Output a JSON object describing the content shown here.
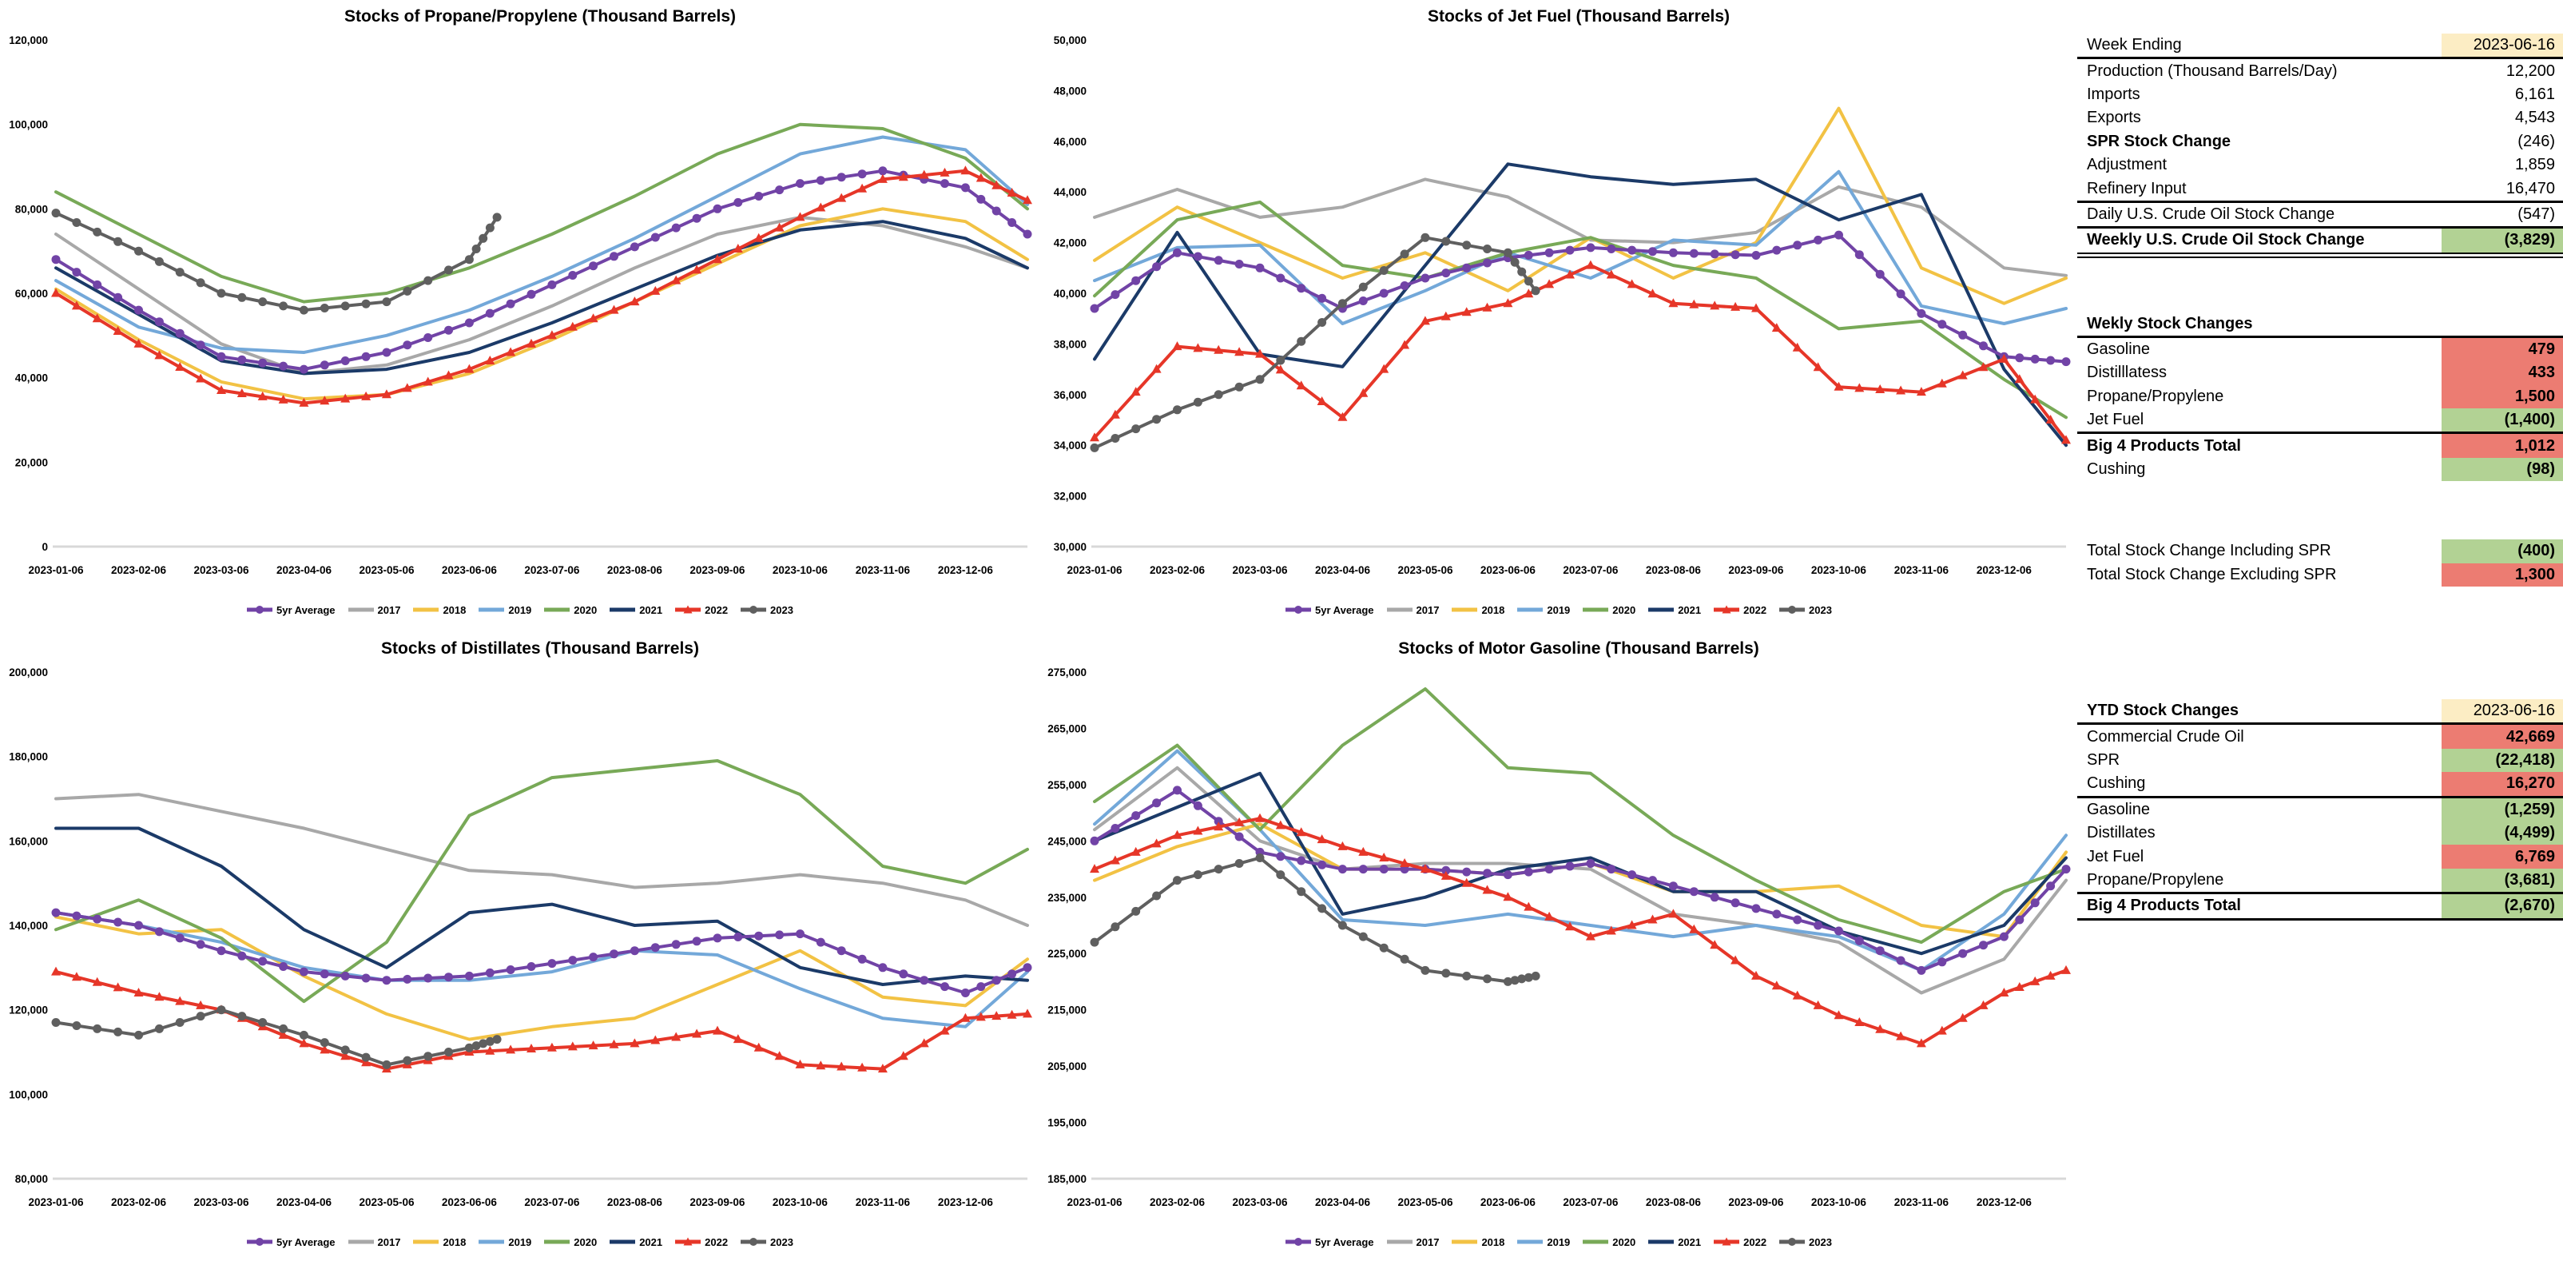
{
  "chart_meta": {
    "x_labels": [
      "2023-01-06",
      "2023-02-06",
      "2023-03-06",
      "2023-04-06",
      "2023-05-06",
      "2023-06-06",
      "2023-07-06",
      "2023-08-06",
      "2023-09-06",
      "2023-10-06",
      "2023-11-06",
      "2023-12-06"
    ],
    "xf_full": [
      0,
      0.0851,
      0.1702,
      0.2553,
      0.3404,
      0.4255,
      0.5106,
      0.5957,
      0.6809,
      0.766,
      0.8511,
      0.9362,
      1.0
    ],
    "xf_partial": [
      0,
      0.0851,
      0.1702,
      0.2553,
      0.3404,
      0.4255,
      0.454
    ]
  },
  "chart_data": [
    {
      "type": "line",
      "title": "Stocks of Propane/Propylene (Thousand Barrels)",
      "y_min": 0,
      "y_max": 120000,
      "y_step": 20000,
      "legend_position": "bottom",
      "series": [
        {
          "name": "5yr Average",
          "color": "#7143A6",
          "marker": "circle",
          "xf": "full",
          "values": [
            68000,
            56000,
            45000,
            42000,
            46000,
            53000,
            62000,
            71000,
            80000,
            86000,
            89000,
            85000,
            74000
          ]
        },
        {
          "name": "2017",
          "color": "#A8A8A8",
          "marker": "none",
          "xf": "full",
          "values": [
            74000,
            61000,
            48000,
            41000,
            43000,
            49000,
            57000,
            66000,
            74000,
            78000,
            76000,
            71000,
            66000
          ]
        },
        {
          "name": "2018",
          "color": "#F2C244",
          "marker": "none",
          "xf": "full",
          "values": [
            61000,
            49000,
            39000,
            35000,
            36000,
            41000,
            49000,
            58000,
            67000,
            76000,
            80000,
            77000,
            68000
          ]
        },
        {
          "name": "2019",
          "color": "#73A8D9",
          "marker": "none",
          "xf": "full",
          "values": [
            63000,
            52000,
            47000,
            46000,
            50000,
            56000,
            64000,
            73000,
            83000,
            93000,
            97000,
            94000,
            81000
          ]
        },
        {
          "name": "2020",
          "color": "#78A957",
          "marker": "none",
          "xf": "full",
          "values": [
            84000,
            74000,
            64000,
            58000,
            60000,
            66000,
            74000,
            83000,
            93000,
            100000,
            99000,
            92000,
            80000
          ]
        },
        {
          "name": "2021",
          "color": "#1B3A68",
          "marker": "none",
          "xf": "full",
          "values": [
            66000,
            55000,
            44000,
            41000,
            42000,
            46000,
            53000,
            61000,
            69000,
            75000,
            77000,
            73000,
            66000
          ]
        },
        {
          "name": "2022",
          "color": "#E63628",
          "marker": "triangle",
          "xf": "full",
          "values": [
            60000,
            48000,
            37000,
            34000,
            36000,
            42000,
            50000,
            58000,
            68000,
            78000,
            87000,
            89000,
            82000
          ]
        },
        {
          "name": "2023",
          "color": "#5F5F5F",
          "marker": "circle",
          "xf": "partial",
          "values": [
            79000,
            70000,
            60000,
            56000,
            58000,
            68000,
            78000
          ]
        }
      ]
    },
    {
      "type": "line",
      "title": "Stocks of Jet Fuel (Thousand Barrels)",
      "y_min": 30000,
      "y_max": 50000,
      "y_step": 2000,
      "legend_position": "bottom",
      "series": [
        {
          "name": "5yr Average",
          "color": "#7143A6",
          "marker": "circle",
          "xf": "full",
          "values": [
            39400,
            41600,
            41000,
            39400,
            40600,
            41400,
            41800,
            41600,
            41500,
            42300,
            39200,
            37500,
            37300
          ]
        },
        {
          "name": "2017",
          "color": "#A8A8A8",
          "marker": "none",
          "xf": "full",
          "values": [
            43000,
            44100,
            43000,
            43400,
            44500,
            43800,
            42100,
            42000,
            42400,
            44200,
            43400,
            41000,
            40700
          ]
        },
        {
          "name": "2018",
          "color": "#F2C244",
          "marker": "none",
          "xf": "full",
          "values": [
            41300,
            43400,
            42000,
            40600,
            41600,
            40100,
            42200,
            40600,
            42000,
            47300,
            41000,
            39600,
            40600
          ]
        },
        {
          "name": "2019",
          "color": "#73A8D9",
          "marker": "none",
          "xf": "full",
          "values": [
            40500,
            41800,
            41900,
            38800,
            40100,
            41600,
            40600,
            42100,
            41900,
            44800,
            39500,
            38800,
            39400
          ]
        },
        {
          "name": "2020",
          "color": "#78A957",
          "marker": "none",
          "xf": "full",
          "values": [
            39900,
            42900,
            43600,
            41100,
            40600,
            41600,
            42200,
            41100,
            40600,
            38600,
            38900,
            36600,
            35100
          ]
        },
        {
          "name": "2021",
          "color": "#1B3A68",
          "marker": "none",
          "xf": "full",
          "values": [
            37400,
            42400,
            37600,
            37100,
            41100,
            45100,
            44600,
            44300,
            44500,
            42900,
            43900,
            37000,
            34000
          ]
        },
        {
          "name": "2022",
          "color": "#E63628",
          "marker": "triangle",
          "xf": "full",
          "values": [
            34300,
            37900,
            37600,
            35100,
            38900,
            39600,
            41100,
            39600,
            39400,
            36300,
            36100,
            37400,
            34200
          ]
        },
        {
          "name": "2023",
          "color": "#5F5F5F",
          "marker": "circle",
          "xf": "partial",
          "values": [
            33900,
            35400,
            36600,
            39600,
            42200,
            41600,
            40100
          ]
        }
      ]
    },
    {
      "type": "line",
      "title": "Stocks of Distillates (Thousand Barrels)",
      "y_min": 80000,
      "y_max": 200000,
      "y_step": 20000,
      "legend_position": "bottom",
      "series": [
        {
          "name": "5yr Average",
          "color": "#7143A6",
          "marker": "circle",
          "xf": "full",
          "values": [
            143000,
            140000,
            134000,
            129000,
            127000,
            128000,
            131000,
            134000,
            137000,
            138000,
            130000,
            124000,
            130000
          ]
        },
        {
          "name": "2017",
          "color": "#A8A8A8",
          "marker": "none",
          "xf": "full",
          "values": [
            170000,
            171000,
            167000,
            163000,
            158000,
            153000,
            152000,
            149000,
            150000,
            152000,
            150000,
            146000,
            140000
          ]
        },
        {
          "name": "2018",
          "color": "#F2C244",
          "marker": "none",
          "xf": "full",
          "values": [
            142000,
            138000,
            139000,
            128000,
            119000,
            113000,
            116000,
            118000,
            126000,
            134000,
            123000,
            121000,
            132000
          ]
        },
        {
          "name": "2019",
          "color": "#73A8D9",
          "marker": "none",
          "xf": "full",
          "values": [
            143000,
            140000,
            136000,
            130000,
            127000,
            127000,
            129000,
            134000,
            133000,
            125000,
            118000,
            116000,
            129000
          ]
        },
        {
          "name": "2020",
          "color": "#78A957",
          "marker": "none",
          "xf": "full",
          "values": [
            139000,
            146000,
            137000,
            122000,
            136000,
            166000,
            175000,
            177000,
            179000,
            171000,
            154000,
            150000,
            158000
          ]
        },
        {
          "name": "2021",
          "color": "#1B3A68",
          "marker": "none",
          "xf": "full",
          "values": [
            163000,
            163000,
            154000,
            139000,
            130000,
            143000,
            145000,
            140000,
            141000,
            130000,
            126000,
            128000,
            127000
          ]
        },
        {
          "name": "2022",
          "color": "#E63628",
          "marker": "triangle",
          "xf": "full",
          "values": [
            129000,
            124000,
            120000,
            112000,
            106000,
            110000,
            111000,
            112000,
            115000,
            107000,
            106000,
            118000,
            119000
          ]
        },
        {
          "name": "2023",
          "color": "#5F5F5F",
          "marker": "circle",
          "xf": "partial",
          "values": [
            117000,
            114000,
            120000,
            114000,
            107000,
            111000,
            113000
          ]
        }
      ]
    },
    {
      "type": "line",
      "title": "Stocks of Motor Gasoline (Thousand Barrels)",
      "y_min": 185000,
      "y_max": 275000,
      "y_step": 10000,
      "legend_position": "bottom",
      "series": [
        {
          "name": "5yr Average",
          "color": "#7143A6",
          "marker": "circle",
          "xf": "full",
          "values": [
            245000,
            254000,
            243000,
            240000,
            240000,
            239000,
            241000,
            237000,
            233000,
            229000,
            222000,
            228000,
            240000
          ]
        },
        {
          "name": "2017",
          "color": "#A8A8A8",
          "marker": "none",
          "xf": "full",
          "values": [
            247000,
            258000,
            245000,
            240000,
            241000,
            241000,
            240000,
            232000,
            230000,
            227000,
            218000,
            224000,
            238000
          ]
        },
        {
          "name": "2018",
          "color": "#F2C244",
          "marker": "none",
          "xf": "full",
          "values": [
            238000,
            244000,
            248000,
            240000,
            240000,
            239000,
            241000,
            236000,
            236000,
            237000,
            230000,
            228000,
            243000
          ]
        },
        {
          "name": "2019",
          "color": "#73A8D9",
          "marker": "none",
          "xf": "full",
          "values": [
            248000,
            261000,
            247000,
            231000,
            230000,
            232000,
            230000,
            228000,
            230000,
            228000,
            222000,
            232000,
            246000
          ]
        },
        {
          "name": "2020",
          "color": "#78A957",
          "marker": "none",
          "xf": "full",
          "values": [
            252000,
            262000,
            247000,
            262000,
            272000,
            258000,
            257000,
            246000,
            238000,
            231000,
            227000,
            236000,
            240000
          ]
        },
        {
          "name": "2021",
          "color": "#1B3A68",
          "marker": "none",
          "xf": "full",
          "values": [
            245000,
            251000,
            257000,
            232000,
            235000,
            240000,
            242000,
            236000,
            236000,
            229000,
            225000,
            230000,
            242000
          ]
        },
        {
          "name": "2022",
          "color": "#E63628",
          "marker": "triangle",
          "xf": "full",
          "values": [
            240000,
            246000,
            249000,
            244000,
            240000,
            235000,
            228000,
            232000,
            221000,
            214000,
            209000,
            218000,
            222000
          ]
        },
        {
          "name": "2023",
          "color": "#5F5F5F",
          "marker": "circle",
          "xf": "partial",
          "values": [
            227000,
            238000,
            242000,
            230000,
            222000,
            220000,
            221000
          ]
        }
      ]
    }
  ],
  "side_panel": {
    "fills": {
      "red": "#EC7C72",
      "green": "#B2D294",
      "yellow": "#FCEDC4"
    },
    "weekly_report": {
      "rows": [
        {
          "label": "Week Ending",
          "value": "2023-06-16",
          "value_fill": "yellow",
          "rule": "single"
        },
        {
          "label": "Production (Thousand Barrels/Day)",
          "value": "12,200"
        },
        {
          "label": "Imports",
          "value": "6,161"
        },
        {
          "label": "Exports",
          "value": "4,543"
        },
        {
          "label": "SPR Stock Change",
          "value": "(246)",
          "label_bold": true
        },
        {
          "label": "Adjustment",
          "value": "1,859"
        },
        {
          "label": "Refinery Input",
          "value": "16,470",
          "rule": "single"
        },
        {
          "label": "Daily U.S. Crude Oil Stock Change",
          "value": "(547)",
          "rule": "single"
        },
        {
          "label": "Weekly U.S. Crude Oil Stock Change",
          "value": "(3,829)",
          "label_bold": true,
          "value_bold": true,
          "value_fill": "green",
          "rule": "double"
        }
      ]
    },
    "weekly_stock_changes": {
      "rows": [
        {
          "label": "Wekly Stock Changes",
          "value": "",
          "label_bold": true,
          "rule": "single"
        },
        {
          "label": "Gasoline",
          "value": "479",
          "value_fill": "red",
          "value_bold": true
        },
        {
          "label": "Distilllatess",
          "value": "433",
          "value_fill": "red",
          "value_bold": true
        },
        {
          "label": "Propane/Propylene",
          "value": "1,500",
          "value_fill": "red",
          "value_bold": true
        },
        {
          "label": "Jet Fuel",
          "value": "(1,400)",
          "value_fill": "green",
          "value_bold": true,
          "rule": "single"
        },
        {
          "label": "Big 4 Products Total",
          "value": "1,012",
          "label_bold": true,
          "value_fill": "red",
          "value_bold": true
        },
        {
          "label": "Cushing",
          "value": "(98)",
          "value_fill": "green",
          "value_bold": true
        }
      ]
    },
    "totals": {
      "rows": [
        {
          "label": "Total Stock Change Including SPR",
          "value": "(400)",
          "value_fill": "green",
          "value_bold": true
        },
        {
          "label": "Total Stock Change Excluding SPR",
          "value": "1,300",
          "value_fill": "red",
          "value_bold": true
        }
      ]
    },
    "ytd_stock_changes": {
      "rows": [
        {
          "label": "YTD Stock Changes",
          "value": "2023-06-16",
          "label_bold": true,
          "value_fill": "yellow",
          "rule": "single"
        },
        {
          "label": "Commercial Crude Oil",
          "value": "42,669",
          "value_fill": "red",
          "value_bold": true
        },
        {
          "label": "SPR",
          "value": "(22,418)",
          "value_fill": "green",
          "value_bold": true
        },
        {
          "label": "Cushing",
          "value": "16,270",
          "value_fill": "red",
          "value_bold": true,
          "rule": "single"
        },
        {
          "label": "Gasoline",
          "value": "(1,259)",
          "value_fill": "green",
          "value_bold": true
        },
        {
          "label": "Distillates",
          "value": "(4,499)",
          "value_fill": "green",
          "value_bold": true
        },
        {
          "label": "Jet Fuel",
          "value": "6,769",
          "value_fill": "red",
          "value_bold": true
        },
        {
          "label": "Propane/Propylene",
          "value": "(3,681)",
          "value_fill": "green",
          "value_bold": true,
          "rule": "single"
        },
        {
          "label": "Big 4 Products Total",
          "value": "(2,670)",
          "label_bold": true,
          "value_fill": "green",
          "value_bold": true,
          "rule": "single"
        }
      ]
    }
  }
}
